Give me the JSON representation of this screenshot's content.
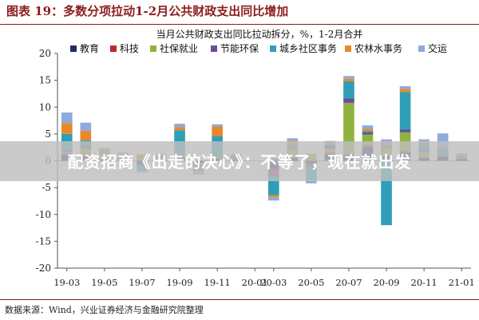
{
  "header": {
    "title": "图表 19：多数分项拉动1-2月公共财政支出同比增加"
  },
  "banner": {
    "text": "配资招商《出走的决心》：不等了，现在就出发"
  },
  "footer": {
    "source": "数据来源：Wind，兴业证券经济与金融研究院整理"
  },
  "colors": {
    "header": "#8c1c1c",
    "教育": "#1f2a6b",
    "科技": "#c0262d",
    "社保就业": "#8fb33f",
    "节能环保": "#6e4c96",
    "城乡社区事务": "#2f9fb7",
    "农林水事务": "#e8882b",
    "交运": "#8eaadb"
  },
  "chart_data": {
    "type": "bar",
    "stacked": true,
    "title": "当月公共财政支出同比拉动拆分，%，1-2月合并",
    "xlabel": "",
    "ylabel": "",
    "ylim": [
      -20,
      20
    ],
    "yticks": [
      "20",
      "15",
      "10",
      "5",
      "0",
      "-5",
      "-10",
      "-15",
      "-20"
    ],
    "grid": false,
    "legend_position": "top",
    "xticklabels": [
      "19-03",
      "19-05",
      "19-07",
      "19-09",
      "19-11",
      "20-01",
      "20-03",
      "20-05",
      "20-07",
      "20-09",
      "20-11",
      "21-01"
    ],
    "categories": [
      "19-03",
      "19-04",
      "19-05",
      "19-06",
      "19-07",
      "19-08",
      "19-09",
      "19-10",
      "19-11",
      "19-12",
      "20-01",
      "20-03",
      "20-04",
      "20-05",
      "20-06",
      "20-07",
      "20-08",
      "20-09",
      "20-10",
      "20-11",
      "20-12",
      "21-01"
    ],
    "series": [
      {
        "name": "教育",
        "values": [
          1.0,
          0.8,
          0.2,
          0.3,
          -0.5,
          0.2,
          0.5,
          -0.4,
          0.3,
          0.2,
          0.0,
          -1.5,
          0.5,
          -0.4,
          1.2,
          1.0,
          2.5,
          0.8,
          1.5,
          0.5,
          0.8,
          0.3
        ]
      },
      {
        "name": "科技",
        "values": [
          0.3,
          0.3,
          0.1,
          0.2,
          -0.1,
          0.1,
          0.2,
          -0.1,
          0.1,
          0.1,
          0.0,
          -0.6,
          0.2,
          -0.2,
          0.3,
          0.3,
          0.4,
          0.2,
          0.3,
          0.1,
          0.1,
          0.1
        ]
      },
      {
        "name": "社保就业",
        "values": [
          0.3,
          1.2,
          0.8,
          0.2,
          0.5,
          0.2,
          0.4,
          -0.3,
          0.3,
          0.1,
          0.0,
          0.5,
          1.5,
          0.8,
          0.8,
          9.5,
          2.0,
          1.5,
          3.5,
          1.0,
          0.2,
          0.2
        ]
      },
      {
        "name": "节能环保",
        "values": [
          0.4,
          0.5,
          0.1,
          0.2,
          -0.4,
          0.1,
          0.1,
          -0.2,
          0.1,
          0.0,
          0.0,
          -0.8,
          0.2,
          -0.5,
          0.5,
          0.8,
          0.4,
          0.3,
          0.5,
          0.2,
          0.2,
          0.1
        ]
      },
      {
        "name": "城乡社区事务",
        "values": [
          3.0,
          1.0,
          0.5,
          0.2,
          -0.8,
          0.3,
          4.5,
          -0.8,
          3.8,
          0.5,
          0.0,
          -3.5,
          0.5,
          -2.5,
          0.3,
          3.2,
          0.3,
          -12.0,
          7.0,
          1.2,
          1.0,
          0.2
        ]
      },
      {
        "name": "农林水事务",
        "values": [
          2.0,
          1.8,
          0.5,
          0.3,
          0.7,
          0.2,
          0.6,
          -0.5,
          1.8,
          0.3,
          0.0,
          -0.4,
          0.8,
          0.5,
          0.3,
          0.5,
          0.4,
          0.6,
          0.6,
          0.4,
          0.3,
          0.2
        ]
      },
      {
        "name": "交运",
        "values": [
          2.0,
          1.5,
          0.2,
          0.2,
          -0.4,
          0.2,
          0.6,
          -0.3,
          0.4,
          0.1,
          0.0,
          -0.6,
          0.5,
          -0.6,
          0.3,
          0.5,
          0.6,
          0.6,
          0.5,
          0.6,
          2.5,
          0.3
        ]
      }
    ]
  }
}
